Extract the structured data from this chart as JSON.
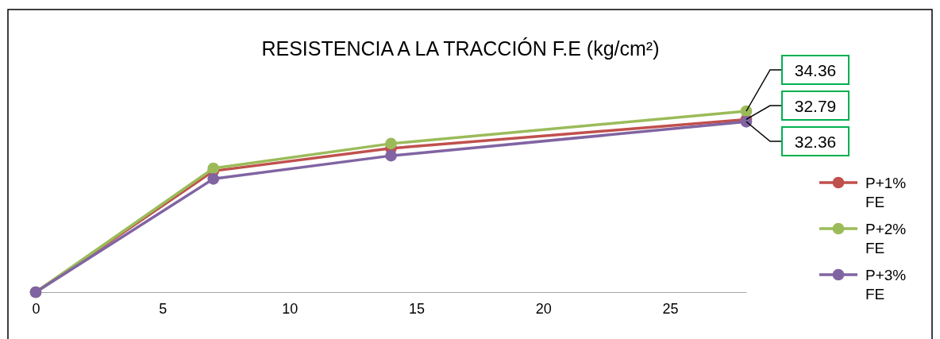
{
  "chart_data": {
    "type": "line",
    "title": "RESISTENCIA A LA TRACCIÓN F.E (kg/cm²)",
    "x": [
      0,
      7,
      14,
      28
    ],
    "xlim": [
      0,
      28
    ],
    "xticks": [
      0,
      5,
      10,
      15,
      20,
      25
    ],
    "tick_labels": "x",
    "legend": "right",
    "marker": "circle",
    "line_style": "solid",
    "series": [
      {
        "name": "P+1% FE",
        "color": "#c0504d",
        "values": [
          0,
          23.0,
          27.3,
          32.79
        ],
        "value_labels": [
          null,
          null,
          null,
          "32.79"
        ]
      },
      {
        "name": "P+2% FE",
        "color": "#9bbb59",
        "values": [
          0,
          23.5,
          28.2,
          34.36
        ],
        "value_labels": [
          null,
          null,
          null,
          "34.36"
        ]
      },
      {
        "name": "P+3% FE",
        "color": "#8064a2",
        "values": [
          0,
          21.5,
          25.9,
          32.36
        ],
        "value_labels": [
          null,
          null,
          null,
          "32.36"
        ]
      }
    ]
  }
}
